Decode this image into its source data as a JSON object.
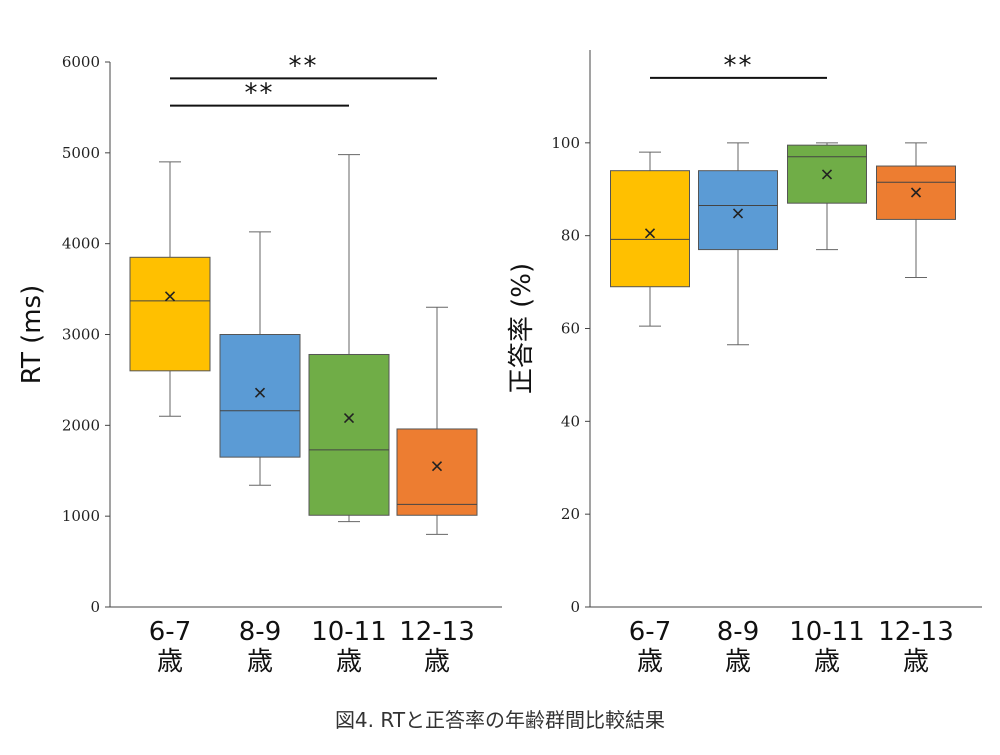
{
  "caption": "図4. RTと正答率の年齢群間比較結果",
  "chart_data": [
    {
      "type": "box",
      "ylabel": "RT (ms)",
      "ylim": [
        0,
        6000
      ],
      "yticks": [
        0,
        1000,
        2000,
        3000,
        4000,
        5000,
        6000
      ],
      "categories": [
        {
          "top": "6-7",
          "bottom": "歳",
          "color": "#FFC000",
          "min": 2100,
          "q1": 2600,
          "median": 3370,
          "q3": 3850,
          "max": 4900,
          "mean": 3420
        },
        {
          "top": "8-9",
          "bottom": "歳",
          "color": "#5B9BD5",
          "min": 1340,
          "q1": 1650,
          "median": 2160,
          "q3": 3000,
          "max": 4130,
          "mean": 2360
        },
        {
          "top": "10-11",
          "bottom": "歳",
          "color": "#70AD47",
          "min": 940,
          "q1": 1010,
          "median": 1730,
          "q3": 2780,
          "max": 4980,
          "mean": 2080
        },
        {
          "top": "12-13",
          "bottom": "歳",
          "color": "#ED7D31",
          "min": 800,
          "q1": 1010,
          "median": 1130,
          "q3": 1960,
          "max": 3300,
          "mean": 1550
        }
      ],
      "significance": [
        {
          "from": 0,
          "to": 3,
          "y": 5820,
          "label": "**"
        },
        {
          "from": 0,
          "to": 2,
          "y": 5520,
          "label": "**"
        }
      ]
    },
    {
      "type": "box",
      "ylabel": "正答率 (%)",
      "ylim": [
        0,
        120
      ],
      "yticks": [
        0,
        20,
        40,
        60,
        80,
        100
      ],
      "categories": [
        {
          "top": "6-7",
          "bottom": "歳",
          "color": "#FFC000",
          "min": 60.5,
          "q1": 69,
          "median": 79.2,
          "q3": 94,
          "max": 98,
          "mean": 80.5
        },
        {
          "top": "8-9",
          "bottom": "歳",
          "color": "#5B9BD5",
          "min": 56.5,
          "q1": 77,
          "median": 86.5,
          "q3": 94,
          "max": 100,
          "mean": 84.8
        },
        {
          "top": "10-11",
          "bottom": "歳",
          "color": "#70AD47",
          "min": 77,
          "q1": 87,
          "median": 97,
          "q3": 99.5,
          "max": 100,
          "mean": 93.2
        },
        {
          "top": "12-13",
          "bottom": "歳",
          "color": "#ED7D31",
          "min": 71,
          "q1": 83.5,
          "median": 91.5,
          "q3": 95,
          "max": 100,
          "mean": 89.3
        }
      ],
      "significance": [
        {
          "from": 0,
          "to": 2,
          "y": 114,
          "label": "**"
        }
      ]
    }
  ]
}
